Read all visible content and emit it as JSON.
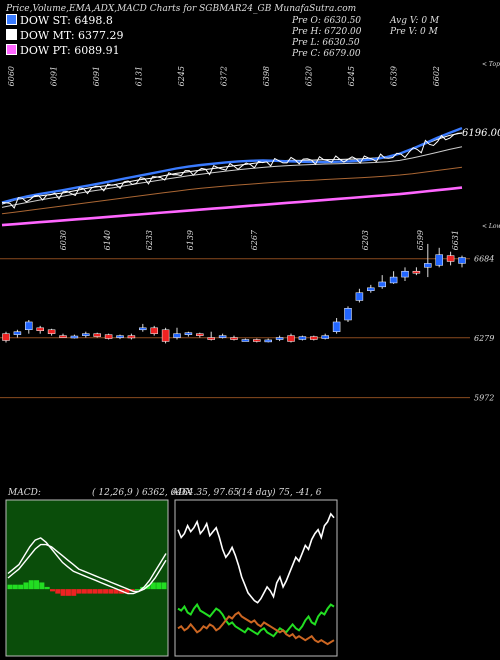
{
  "header": {
    "title": "Price,Volume,EMA,ADX,MACD Charts for SGBMAR24_GB MunafaSutra.com"
  },
  "legend": [
    {
      "label": "DOW ST: 6498.8",
      "color": "#3a7bff"
    },
    {
      "label": "DOW MT: 6377.29",
      "color": "#ffffff"
    },
    {
      "label": "DOW PT: 6089.91",
      "color": "#ff66ff"
    }
  ],
  "quote": {
    "col1": [
      "Pre O: 6630.50",
      "Pre H: 6720.00",
      "Pre L: 6630.50",
      "Pre C: 6679.00"
    ],
    "col2": [
      "Avg V: 0  M",
      "Pre V: 0  M"
    ]
  },
  "chart_data": [
    {
      "type": "line",
      "name": "ema-panel",
      "top_ticks": [
        "6060",
        "6091",
        "6091",
        "6131",
        "6245",
        "6372",
        "6398",
        "6520",
        "6245",
        "6539",
        "6602"
      ],
      "bottom_ticks": [
        "6030",
        "6140",
        "6233",
        "6139",
        "6267",
        "6203",
        "6599",
        "6631"
      ],
      "annotations": [
        "< Top",
        "< Lows",
        "6196.00"
      ],
      "series": [
        {
          "color": "#ffffff",
          "values": [
            5920,
            5945,
            5960,
            5970,
            5980,
            5990,
            6005,
            6020,
            6030,
            6040,
            6055,
            6070,
            6080,
            6095,
            6110,
            6120,
            6130,
            6140,
            6150,
            6160,
            6170,
            6180,
            6185,
            6190,
            6190,
            6192,
            6195,
            6196,
            6198,
            6200,
            6205,
            6215,
            6230,
            6260,
            6290,
            6320,
            6345,
            6360
          ]
        },
        {
          "color": "#cccccc",
          "values": [
            5900,
            5915,
            5930,
            5945,
            5958,
            5970,
            5985,
            5998,
            6010,
            6022,
            6035,
            6048,
            6060,
            6072,
            6084,
            6095,
            6105,
            6115,
            6124,
            6132,
            6140,
            6147,
            6153,
            6158,
            6162,
            6165,
            6168,
            6170,
            6172,
            6174,
            6177,
            6182,
            6190,
            6205,
            6222,
            6240,
            6258,
            6275
          ]
        },
        {
          "color": "#3a7bff",
          "values": [
            5930,
            5950,
            5968,
            5982,
            5995,
            6008,
            6022,
            6036,
            6050,
            6065,
            6080,
            6095,
            6110,
            6125,
            6140,
            6152,
            6162,
            6170,
            6178,
            6184,
            6188,
            6190,
            6188,
            6185,
            6182,
            6180,
            6180,
            6182,
            6185,
            6190,
            6198,
            6212,
            6232,
            6262,
            6295,
            6330,
            6360,
            6390
          ]
        },
        {
          "color": "#aa6633",
          "values": [
            5860,
            5870,
            5880,
            5890,
            5900,
            5910,
            5920,
            5930,
            5940,
            5950,
            5960,
            5970,
            5980,
            5990,
            6000,
            6010,
            6018,
            6025,
            6032,
            6038,
            6044,
            6050,
            6055,
            6060,
            6064,
            6068,
            6072,
            6076,
            6080,
            6084,
            6088,
            6094,
            6100,
            6108,
            6118,
            6128,
            6138,
            6148
          ]
        },
        {
          "color": "#ff66ff",
          "values": [
            5790,
            5796,
            5802,
            5808,
            5814,
            5820,
            5826,
            5832,
            5838,
            5844,
            5850,
            5856,
            5862,
            5868,
            5874,
            5880,
            5886,
            5892,
            5898,
            5904,
            5910,
            5916,
            5922,
            5928,
            5934,
            5940,
            5946,
            5952,
            5958,
            5964,
            5970,
            5976,
            5982,
            5990,
            5998,
            6006,
            6014,
            6022
          ]
        }
      ]
    },
    {
      "type": "candlestick",
      "name": "price-panel",
      "levels": [
        6684,
        6279,
        5972
      ],
      "candles": [
        {
          "o": 6300,
          "c": 6265,
          "h": 6310,
          "l": 6255
        },
        {
          "o": 6295,
          "c": 6310,
          "h": 6320,
          "l": 6280
        },
        {
          "o": 6320,
          "c": 6360,
          "h": 6370,
          "l": 6300
        },
        {
          "o": 6330,
          "c": 6315,
          "h": 6340,
          "l": 6300
        },
        {
          "o": 6320,
          "c": 6300,
          "h": 6325,
          "l": 6290
        },
        {
          "o": 6290,
          "c": 6285,
          "h": 6300,
          "l": 6280
        },
        {
          "o": 6280,
          "c": 6288,
          "h": 6295,
          "l": 6275
        },
        {
          "o": 6290,
          "c": 6300,
          "h": 6310,
          "l": 6280
        },
        {
          "o": 6300,
          "c": 6285,
          "h": 6305,
          "l": 6280
        },
        {
          "o": 6295,
          "c": 6275,
          "h": 6300,
          "l": 6270
        },
        {
          "o": 6280,
          "c": 6290,
          "h": 6295,
          "l": 6272
        },
        {
          "o": 6290,
          "c": 6278,
          "h": 6300,
          "l": 6270
        },
        {
          "o": 6320,
          "c": 6330,
          "h": 6350,
          "l": 6310
        },
        {
          "o": 6330,
          "c": 6300,
          "h": 6340,
          "l": 6290
        },
        {
          "o": 6320,
          "c": 6260,
          "h": 6330,
          "l": 6250
        },
        {
          "o": 6280,
          "c": 6300,
          "h": 6330,
          "l": 6270
        },
        {
          "o": 6295,
          "c": 6305,
          "h": 6310,
          "l": 6285
        },
        {
          "o": 6300,
          "c": 6290,
          "h": 6305,
          "l": 6280
        },
        {
          "o": 6280,
          "c": 6270,
          "h": 6310,
          "l": 6265
        },
        {
          "o": 6280,
          "c": 6290,
          "h": 6300,
          "l": 6275
        },
        {
          "o": 6280,
          "c": 6270,
          "h": 6290,
          "l": 6265
        },
        {
          "o": 6265,
          "c": 6270,
          "h": 6275,
          "l": 6260
        },
        {
          "o": 6270,
          "c": 6265,
          "h": 6275,
          "l": 6255
        },
        {
          "o": 6262,
          "c": 6268,
          "h": 6275,
          "l": 6255
        },
        {
          "o": 6270,
          "c": 6280,
          "h": 6290,
          "l": 6262
        },
        {
          "o": 6290,
          "c": 6260,
          "h": 6300,
          "l": 6255
        },
        {
          "o": 6270,
          "c": 6285,
          "h": 6290,
          "l": 6265
        },
        {
          "o": 6285,
          "c": 6270,
          "h": 6290,
          "l": 6265
        },
        {
          "o": 6275,
          "c": 6290,
          "h": 6300,
          "l": 6270
        },
        {
          "o": 6310,
          "c": 6360,
          "h": 6380,
          "l": 6300
        },
        {
          "o": 6370,
          "c": 6430,
          "h": 6440,
          "l": 6360
        },
        {
          "o": 6470,
          "c": 6510,
          "h": 6530,
          "l": 6460
        },
        {
          "o": 6520,
          "c": 6535,
          "h": 6550,
          "l": 6510
        },
        {
          "o": 6540,
          "c": 6565,
          "h": 6600,
          "l": 6530
        },
        {
          "o": 6560,
          "c": 6590,
          "h": 6620,
          "l": 6555
        },
        {
          "o": 6590,
          "c": 6620,
          "h": 6640,
          "l": 6570
        },
        {
          "o": 6620,
          "c": 6610,
          "h": 6640,
          "l": 6600
        },
        {
          "o": 6640,
          "c": 6660,
          "h": 6760,
          "l": 6590
        },
        {
          "o": 6650,
          "c": 6705,
          "h": 6740,
          "l": 6640
        },
        {
          "o": 6700,
          "c": 6670,
          "h": 6720,
          "l": 6650
        },
        {
          "o": 6660,
          "c": 6690,
          "h": 6700,
          "l": 6640
        }
      ]
    },
    {
      "type": "line",
      "name": "macd-panel",
      "title": "MACD:",
      "params": "( 12,26,9 ) 6362, 6464.35, 97.65",
      "series": [
        {
          "color": "#ffffff",
          "values": [
            14,
            18,
            22,
            30,
            38,
            44,
            46,
            42,
            36,
            30,
            24,
            20,
            16,
            14,
            12,
            10,
            8,
            6,
            4,
            2,
            0,
            -2,
            -4,
            -4,
            -2,
            2,
            8,
            16,
            24,
            32
          ]
        },
        {
          "color": "#ffffff",
          "values": [
            10,
            14,
            18,
            24,
            30,
            36,
            40,
            40,
            38,
            34,
            30,
            26,
            22,
            18,
            16,
            14,
            12,
            10,
            8,
            6,
            4,
            2,
            0,
            -2,
            -2,
            0,
            4,
            10,
            18,
            26
          ]
        }
      ],
      "histogram": [
        4,
        4,
        4,
        6,
        8,
        8,
        6,
        2,
        -2,
        -4,
        -6,
        -6,
        -6,
        -4,
        -4,
        -4,
        -4,
        -4,
        -4,
        -4,
        -4,
        -4,
        -4,
        -2,
        0,
        2,
        4,
        6,
        6,
        6
      ]
    },
    {
      "type": "line",
      "name": "adx-panel",
      "title": "ADX",
      "params": "(14 day) 75, -41, 6",
      "series": [
        {
          "color": "#ffffff",
          "values": [
            62,
            58,
            60,
            64,
            61,
            63,
            66,
            60,
            62,
            65,
            59,
            61,
            63,
            58,
            52,
            48,
            50,
            53,
            49,
            44,
            38,
            34,
            30,
            28,
            26,
            25,
            27,
            30,
            33,
            31,
            28,
            35,
            38,
            33,
            36,
            40,
            44,
            48,
            46,
            50,
            54,
            52,
            57,
            60,
            62,
            58,
            64,
            66,
            70,
            68
          ]
        },
        {
          "color": "#22dd22",
          "values": [
            22,
            21,
            23,
            20,
            19,
            22,
            24,
            21,
            20,
            19,
            18,
            20,
            22,
            21,
            19,
            16,
            14,
            15,
            13,
            12,
            11,
            10,
            12,
            11,
            10,
            9,
            11,
            12,
            10,
            9,
            8,
            10,
            12,
            11,
            10,
            12,
            14,
            12,
            11,
            13,
            16,
            18,
            15,
            14,
            18,
            20,
            19,
            22,
            24,
            23
          ]
        },
        {
          "color": "#cc6622",
          "values": [
            12,
            13,
            11,
            12,
            14,
            12,
            10,
            11,
            13,
            12,
            14,
            13,
            11,
            12,
            14,
            16,
            18,
            17,
            19,
            20,
            18,
            17,
            16,
            15,
            16,
            14,
            13,
            15,
            14,
            13,
            12,
            11,
            10,
            11,
            9,
            8,
            9,
            7,
            8,
            7,
            6,
            7,
            8,
            6,
            5,
            6,
            5,
            4,
            5,
            6
          ]
        }
      ]
    }
  ]
}
